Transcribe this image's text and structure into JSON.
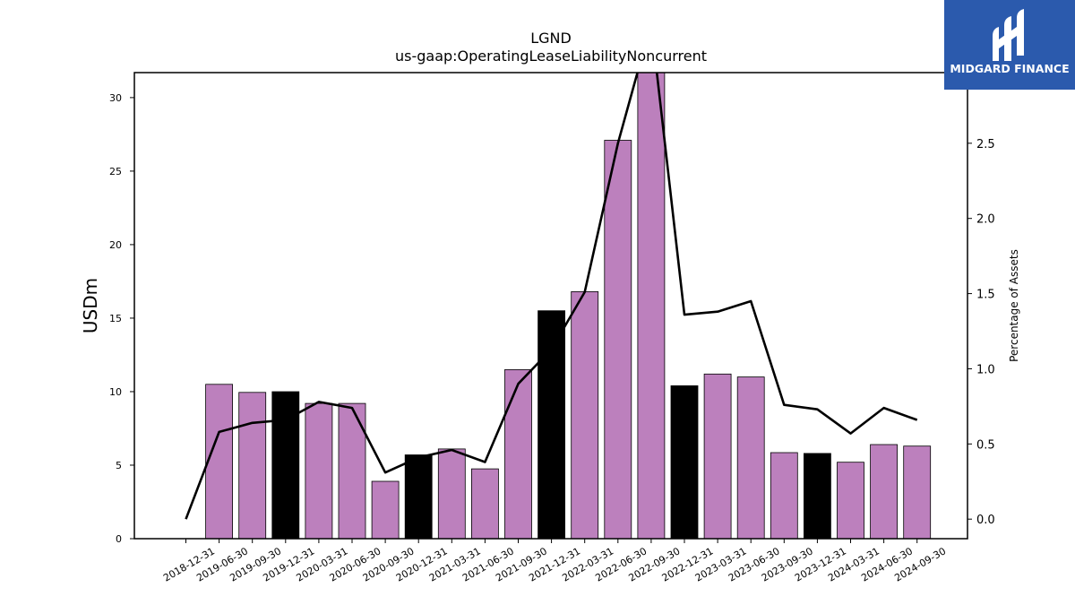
{
  "logo": {
    "text": "MIDGARD FINANCE",
    "bg_color": "#2b5aad"
  },
  "chart_data": {
    "type": "bar",
    "title": "LGND",
    "subtitle": "us-gaap:OperatingLeaseLiabilityNoncurrent",
    "ylabel": "USDm",
    "y2label": "Percentage of Assets",
    "ylim": [
      0,
      31.7
    ],
    "y2lim": [
      -0.13,
      2.97
    ],
    "yticks": [
      0,
      5,
      10,
      15,
      20,
      25,
      30
    ],
    "y2ticks": [
      0.0,
      0.5,
      1.0,
      1.5,
      2.0,
      2.5
    ],
    "grid": false,
    "colors": {
      "quarter": "#bc80bd",
      "year_end": "#000000",
      "line": "#000000"
    },
    "categories": [
      "2018-12-31",
      "2019-06-30",
      "2019-09-30",
      "2019-12-31",
      "2020-03-31",
      "2020-06-30",
      "2020-09-30",
      "2020-12-31",
      "2021-03-31",
      "2021-06-30",
      "2021-09-30",
      "2021-12-31",
      "2022-03-31",
      "2022-06-30",
      "2022-09-30",
      "2022-12-31",
      "2023-03-31",
      "2023-06-30",
      "2023-09-30",
      "2023-12-31",
      "2024-03-31",
      "2024-06-30",
      "2024-09-30"
    ],
    "series": [
      {
        "type": "bar",
        "values": [
          0,
          10.5,
          9.95,
          10.0,
          9.2,
          9.2,
          3.9,
          5.7,
          6.1,
          4.75,
          11.5,
          15.5,
          16.8,
          27.1,
          31.9,
          10.4,
          11.2,
          11.0,
          5.85,
          5.8,
          5.2,
          6.4,
          6.3
        ],
        "highlight": [
          false,
          false,
          false,
          true,
          false,
          false,
          false,
          true,
          false,
          false,
          false,
          true,
          false,
          false,
          false,
          true,
          false,
          false,
          false,
          true,
          false,
          false,
          false
        ]
      },
      {
        "type": "line",
        "axis": "right",
        "values": [
          0.0,
          0.58,
          0.64,
          0.66,
          0.78,
          0.74,
          0.31,
          0.41,
          0.46,
          0.38,
          0.9,
          1.13,
          1.51,
          2.5,
          3.3,
          1.36,
          1.38,
          1.45,
          0.76,
          0.73,
          0.57,
          0.74,
          0.66
        ]
      }
    ]
  }
}
